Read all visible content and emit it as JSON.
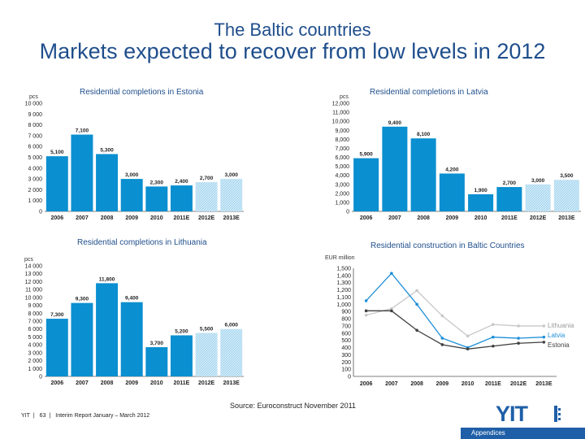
{
  "header": {
    "subtitle": "The Baltic countries",
    "title": "Markets expected to recover from low levels in 2012"
  },
  "colors": {
    "accent": "#1f4e8c",
    "bar": "#0a8fd0",
    "hatch": "#a9d8f0",
    "lithuania": "#c8c8c8",
    "latvia": "#1e8fd8",
    "estonia": "#404040"
  },
  "chart_data": [
    {
      "type": "bar",
      "title": "Residential completions in Estonia",
      "unit": "pcs",
      "categories": [
        "2006",
        "2007",
        "2008",
        "2009",
        "2010",
        "2011E",
        "2012E",
        "2013E"
      ],
      "values": [
        5100,
        7100,
        5300,
        3000,
        2300,
        2400,
        2700,
        3000
      ],
      "labels": [
        "5,100",
        "7,100",
        "5,300",
        "3,000",
        "2,300",
        "2,400",
        "2,700",
        "3,000"
      ],
      "forecast": [
        false,
        false,
        false,
        false,
        false,
        false,
        true,
        true
      ],
      "ylim": [
        0,
        10000
      ],
      "yticks": [
        "0",
        "1 000",
        "2 000",
        "3 000",
        "4 000",
        "5 000",
        "6 000",
        "7 000",
        "8 000",
        "9 000",
        "10 000"
      ]
    },
    {
      "type": "bar",
      "title": "Residential completions in Latvia",
      "unit": "pcs",
      "categories": [
        "2006",
        "2007",
        "2008",
        "2009",
        "2010",
        "2011E",
        "2012E",
        "2013E"
      ],
      "values": [
        5900,
        9400,
        8100,
        4200,
        1900,
        2700,
        3000,
        3500
      ],
      "labels": [
        "5,900",
        "9,400",
        "8,100",
        "4,200",
        "1,900",
        "2,700",
        "3,000",
        "3,500"
      ],
      "forecast": [
        false,
        false,
        false,
        false,
        false,
        false,
        true,
        true
      ],
      "ylim": [
        0,
        12000
      ],
      "yticks": [
        "0",
        "1,000",
        "2,000",
        "3,000",
        "4,000",
        "5,000",
        "6,000",
        "7,000",
        "8,000",
        "9,000",
        "10,000",
        "11,000",
        "12,000"
      ]
    },
    {
      "type": "bar",
      "title": "Residential completions in Lithuania",
      "unit": "pcs",
      "categories": [
        "2006",
        "2007",
        "2008",
        "2009",
        "2010",
        "2011E",
        "2012E",
        "2013E"
      ],
      "values": [
        7300,
        9300,
        11800,
        9400,
        3700,
        5200,
        5500,
        6000
      ],
      "labels": [
        "7,300",
        "9,300",
        "11,800",
        "9,400",
        "3,700",
        "5,200",
        "5,500",
        "6,000"
      ],
      "forecast": [
        false,
        false,
        false,
        false,
        false,
        false,
        true,
        true
      ],
      "ylim": [
        0,
        14000
      ],
      "yticks": [
        "0",
        "1 000",
        "2 000",
        "3 000",
        "4 000",
        "5 000",
        "6 000",
        "7 000",
        "8 000",
        "9 000",
        "10 000",
        "11 000",
        "12 000",
        "13 000",
        "14 000"
      ]
    },
    {
      "type": "line",
      "title": "Residential construction in Baltic Countries",
      "unit": "EUR million",
      "categories": [
        "2006",
        "2007",
        "2008",
        "2009",
        "2010",
        "2011E",
        "2012E",
        "2013E"
      ],
      "ylim": [
        0,
        1500
      ],
      "yticks": [
        "0",
        "100",
        "200",
        "300",
        "400",
        "500",
        "600",
        "700",
        "800",
        "900",
        "1,000",
        "1,100",
        "1,200",
        "1,300",
        "1,400",
        "1,500"
      ],
      "series": [
        {
          "name": "Lithuania",
          "color": "#c8c8c8",
          "values": [
            850,
            940,
            1190,
            840,
            560,
            720,
            700,
            700
          ]
        },
        {
          "name": "Latvia",
          "color": "#1e8fd8",
          "values": [
            1050,
            1430,
            1000,
            530,
            400,
            545,
            530,
            545
          ]
        },
        {
          "name": "Estonia",
          "color": "#404040",
          "values": [
            910,
            910,
            640,
            440,
            380,
            420,
            460,
            475
          ]
        }
      ]
    }
  ],
  "source": "Source: Euroconstruct November 2011",
  "footer": {
    "company": "YIT",
    "page": "63",
    "report": "Interim Report January – March 2012"
  },
  "logo_text": "YIT",
  "appendices": "Appendices"
}
